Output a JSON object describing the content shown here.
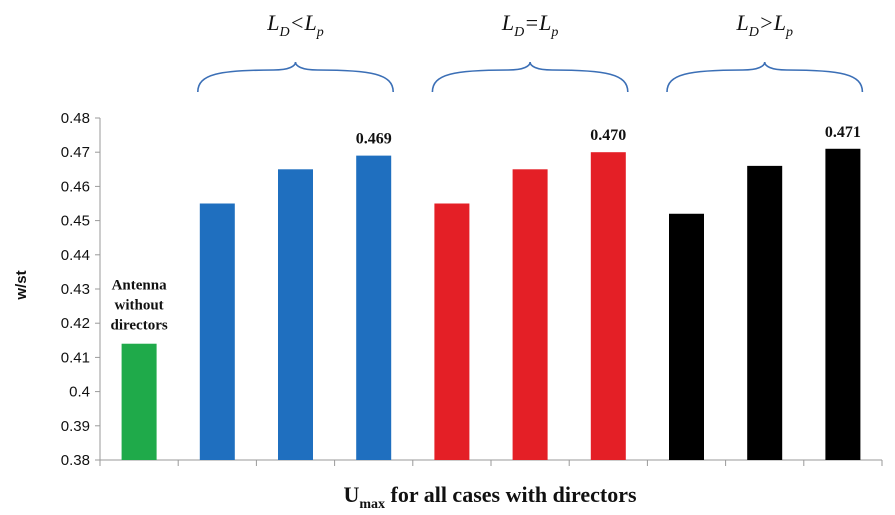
{
  "chart_data": {
    "type": "bar",
    "ylabel": "w/st",
    "xlabel": {
      "main": "U",
      "sub": "max",
      "rest": " for all cases with directors"
    },
    "ylim": [
      0.38,
      0.48
    ],
    "yticks": [
      "0.38",
      "0.39",
      "0.4",
      "0.41",
      "0.42",
      "0.43",
      "0.44",
      "0.45",
      "0.46",
      "0.47",
      "0.48"
    ],
    "grid": false,
    "values": [
      0.414,
      0.455,
      0.465,
      0.469,
      0.455,
      0.465,
      0.47,
      0.452,
      0.466,
      0.471
    ],
    "colors": [
      "#1faa4a",
      "#1f6fbf",
      "#1f6fbf",
      "#1f6fbf",
      "#e41f26",
      "#e41f26",
      "#e41f26",
      "#000000",
      "#000000",
      "#000000"
    ],
    "data_labels": [
      {
        "index": 3,
        "text": "0.469"
      },
      {
        "index": 6,
        "text": "0.470"
      },
      {
        "index": 9,
        "text": "0.471"
      }
    ],
    "annotation": {
      "index": 0,
      "lines": [
        "Antenna",
        "without",
        "directors"
      ]
    },
    "groups": [
      {
        "a": "L",
        "a_sub": "D",
        "op": "<",
        "b": "L",
        "b_sub": "p",
        "from": 1,
        "to": 3
      },
      {
        "a": "L",
        "a_sub": "D",
        "op": "=",
        "b": "L",
        "b_sub": "p",
        "from": 4,
        "to": 6
      },
      {
        "a": "L",
        "a_sub": "D",
        "op": ">",
        "b": "L",
        "b_sub": "p",
        "from": 7,
        "to": 9
      }
    ],
    "brace_color": "#3b6fb6"
  }
}
